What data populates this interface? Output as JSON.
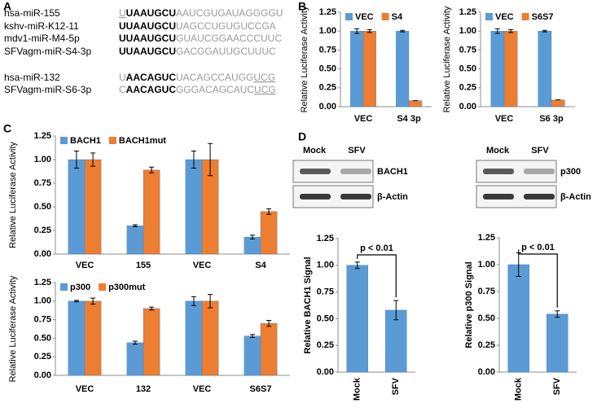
{
  "panel_labels": [
    "A",
    "B",
    "C",
    "D"
  ],
  "sequences": [
    {
      "name": "hsa-miR-155",
      "parts": [
        {
          "text": "U",
          "style": "underline"
        },
        {
          "text": "UAAUGCU",
          "style": "bold"
        },
        {
          "text": "AAUCGUGAUAGGGGU",
          "style": "gray"
        }
      ]
    },
    {
      "name": "kshv-miR-K12-11",
      "parts": [
        {
          "text": "UUAAUGCU",
          "style": "bold"
        },
        {
          "text": "UAGCCUGUGUCCGA",
          "style": "gray"
        }
      ]
    },
    {
      "name": "mdv1-miR-M4-5p",
      "parts": [
        {
          "text": "UUAAUGCU",
          "style": "bold"
        },
        {
          "text": "GUAUCGGAACCCUUC",
          "style": "gray"
        }
      ]
    },
    {
      "name": "SFVagm-miR-S4-3p",
      "parts": [
        {
          "text": "UUAAUGCU",
          "style": "bold"
        },
        {
          "text": "GACGGAUUGCUUUC",
          "style": "gray"
        }
      ]
    },
    {
      "name": "hsa-miR-132",
      "parts": [
        {
          "text": "U",
          "style": "gray"
        },
        {
          "text": "AACAGUC",
          "style": "bold"
        },
        {
          "text": "UACAGCCAUGG",
          "style": "gray"
        },
        {
          "text": "UCG",
          "style": "underline"
        }
      ]
    },
    {
      "name": "SFVagm-miR-S6-3p",
      "parts": [
        {
          "text": "C",
          "style": "gray"
        },
        {
          "text": "AACAGUC",
          "style": "bold"
        },
        {
          "text": "GGGACAGCAUC",
          "style": "gray"
        },
        {
          "text": "UCG",
          "style": "underline"
        }
      ]
    }
  ],
  "blots": [
    {
      "lanes": [
        "Mock",
        "SFV"
      ],
      "proteins": [
        "BACH1",
        "β-Actin"
      ]
    },
    {
      "lanes": [
        "Mock",
        "SFV"
      ],
      "proteins": [
        "p300",
        "β-Actin"
      ]
    }
  ],
  "chart_data": [
    {
      "type": "bar",
      "ylabel": "Relative Luciferase Activity",
      "categories": [
        "VEC",
        "S4 3p"
      ],
      "series": [
        {
          "name": "VEC",
          "color": "#5b9bd5",
          "values": [
            1.0,
            1.0
          ],
          "errors": [
            0.03,
            0.01
          ]
        },
        {
          "name": "S4",
          "color": "#ed7d31",
          "values": [
            1.0,
            0.08
          ],
          "errors": [
            0.02,
            0.0
          ]
        }
      ],
      "ylim": [
        0,
        1.25
      ],
      "yticks": [
        {
          "value": 0,
          "label": "0.00"
        },
        {
          "value": 0.25,
          "label": "0.25"
        },
        {
          "value": 0.5,
          "label": "0.50"
        },
        {
          "value": 0.75,
          "label": "0.75"
        },
        {
          "value": 1,
          "label": "1.00"
        },
        {
          "value": 1.25,
          "label": "1.25"
        }
      ],
      "legend": "top-left"
    },
    {
      "type": "bar",
      "ylabel": "Relative Luciferase Activity",
      "categories": [
        "VEC",
        "S6 3p"
      ],
      "series": [
        {
          "name": "VEC",
          "color": "#5b9bd5",
          "values": [
            1.0,
            1.0
          ],
          "errors": [
            0.03,
            0.01
          ]
        },
        {
          "name": "S6S7",
          "color": "#ed7d31",
          "values": [
            1.0,
            0.09
          ],
          "errors": [
            0.02,
            0.0
          ]
        }
      ],
      "ylim": [
        0,
        1.25
      ],
      "yticks": [
        {
          "value": 0,
          "label": "0.00"
        },
        {
          "value": 0.25,
          "label": "0.25"
        },
        {
          "value": 0.5,
          "label": "0.50"
        },
        {
          "value": 0.75,
          "label": "0.75"
        },
        {
          "value": 1,
          "label": "1.00"
        },
        {
          "value": 1.25,
          "label": "1.25"
        }
      ],
      "legend": "top-left"
    },
    {
      "type": "bar",
      "ylabel": "Relative Luciferase Activity",
      "categories": [
        "VEC",
        "155",
        "VEC",
        "S4"
      ],
      "series": [
        {
          "name": "BACH1",
          "color": "#5b9bd5",
          "values": [
            1.0,
            0.3,
            1.0,
            0.18
          ],
          "errors": [
            0.09,
            0.01,
            0.09,
            0.02
          ]
        },
        {
          "name": "BACH1mut",
          "color": "#ed7d31",
          "values": [
            1.0,
            0.89,
            1.0,
            0.45
          ],
          "errors": [
            0.07,
            0.03,
            0.17,
            0.03
          ]
        }
      ],
      "ylim": [
        0,
        1.25
      ],
      "yticks": [
        {
          "value": 0,
          "label": "0.00"
        },
        {
          "value": 0.25,
          "label": "0.25"
        },
        {
          "value": 0.5,
          "label": "0.50"
        },
        {
          "value": 0.75,
          "label": "0.75"
        },
        {
          "value": 1,
          "label": "1.00"
        },
        {
          "value": 1.25,
          "label": "1.25"
        }
      ],
      "legend": "top-left"
    },
    {
      "type": "bar",
      "ylabel": "Relative Luciferase Activity",
      "categories": [
        "VEC",
        "132",
        "VEC",
        "S6S7"
      ],
      "series": [
        {
          "name": "p300",
          "color": "#5b9bd5",
          "values": [
            1.0,
            0.44,
            1.0,
            0.53
          ],
          "errors": [
            0.01,
            0.02,
            0.06,
            0.02
          ]
        },
        {
          "name": "p300mut",
          "color": "#ed7d31",
          "values": [
            1.0,
            0.9,
            1.0,
            0.7
          ],
          "errors": [
            0.04,
            0.02,
            0.09,
            0.04
          ]
        }
      ],
      "ylim": [
        0,
        1.25
      ],
      "yticks": [
        {
          "value": 0,
          "label": "0.00"
        },
        {
          "value": 0.25,
          "label": "0.25"
        },
        {
          "value": 0.5,
          "label": "0.50"
        },
        {
          "value": 0.75,
          "label": "0.75"
        },
        {
          "value": 1,
          "label": "1.00"
        },
        {
          "value": 1.25,
          "label": "1.25"
        }
      ],
      "legend": "top-left"
    },
    {
      "type": "bar",
      "ylabel": "Relative BACH1 Signal",
      "categories": [
        "Mock",
        "SFV"
      ],
      "annotation": "p < 0.01",
      "series": [
        {
          "color": "#5b9bd5",
          "values": [
            1.0,
            0.58
          ],
          "errors": [
            0.03,
            0.09
          ]
        }
      ],
      "ylim": [
        0,
        1.25
      ],
      "yticks": [
        {
          "value": 0,
          "label": "0.00"
        },
        {
          "value": 0.25,
          "label": "0.25"
        },
        {
          "value": 0.5,
          "label": "0.50"
        },
        {
          "value": 0.75,
          "label": "0.75"
        },
        {
          "value": 1,
          "label": "1.00"
        },
        {
          "value": 1.25,
          "label": "1.25"
        }
      ]
    },
    {
      "type": "bar",
      "ylabel": "Relative p300 Signal",
      "categories": [
        "Mock",
        "SFV"
      ],
      "annotation": "p < 0.01",
      "series": [
        {
          "color": "#5b9bd5",
          "values": [
            1.0,
            0.54
          ],
          "errors": [
            0.11,
            0.03
          ]
        }
      ],
      "ylim": [
        0,
        1.25
      ],
      "yticks": [
        {
          "value": 0,
          "label": "0.00"
        },
        {
          "value": 0.25,
          "label": "0.25"
        },
        {
          "value": 0.5,
          "label": "0.50"
        },
        {
          "value": 0.75,
          "label": "0.75"
        },
        {
          "value": 1,
          "label": "1.00"
        },
        {
          "value": 1.25,
          "label": "1.25"
        }
      ]
    }
  ]
}
